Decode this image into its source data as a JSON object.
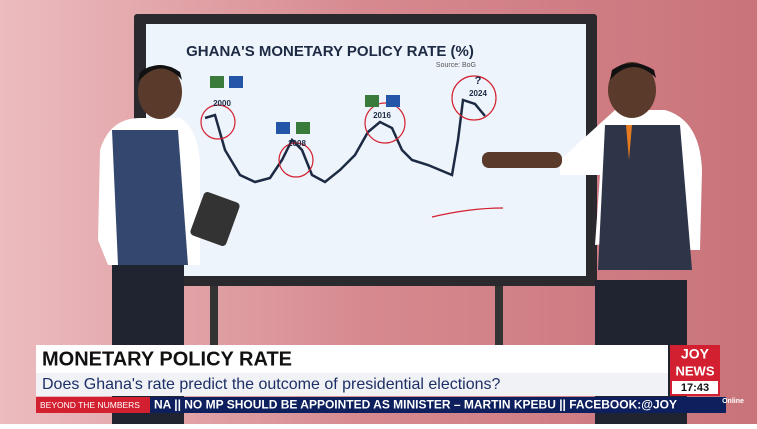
{
  "screen": {
    "title": "GHANA'S MONETARY POLICY RATE (%)",
    "source": "Source: BoG",
    "annotations": [
      "2000",
      "2008",
      "2016",
      "?",
      "2024"
    ]
  },
  "lower_third": {
    "title": "MONETARY POLICY RATE",
    "subtitle": "Does Ghana's rate predict the outcome of presidential elections?"
  },
  "logo": {
    "line1": "JOY",
    "line2": "NEWS",
    "time": "17:43",
    "tag": "Online"
  },
  "ticker": {
    "segment": "BEYOND THE NUMBERS",
    "text": "NA || NO MP SHOULD BE APPOINTED AS MINISTER – MARTIN KPEBU || FACEBOOK:@JOY"
  }
}
